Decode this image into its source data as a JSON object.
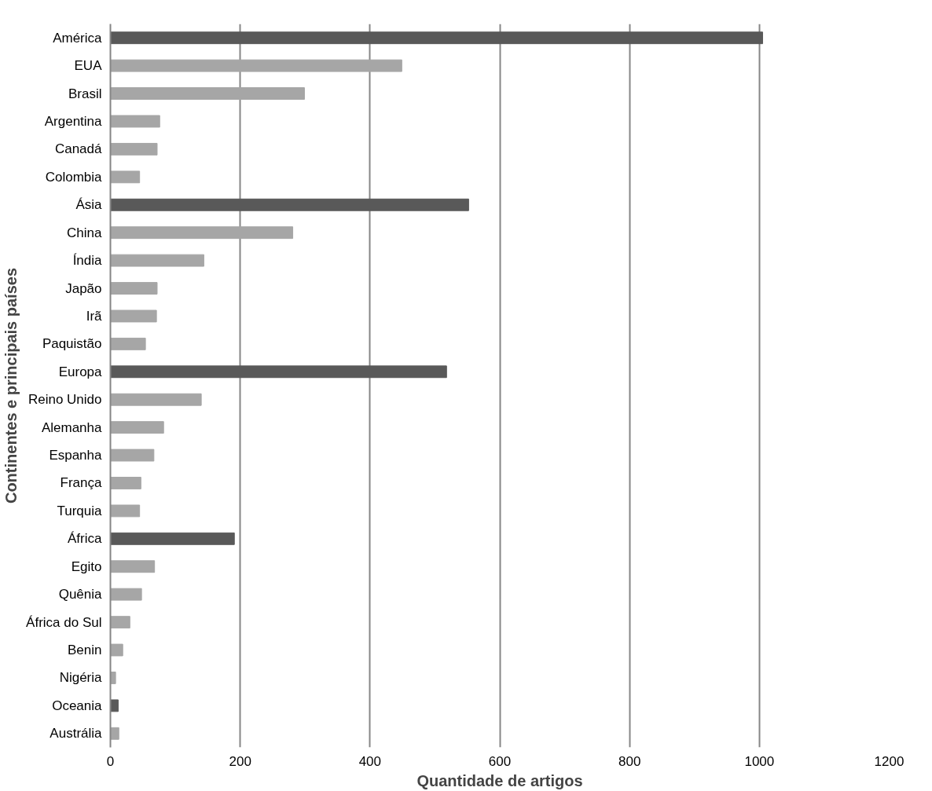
{
  "chart_data": {
    "type": "bar",
    "orientation": "horizontal",
    "xlabel": "Quantidade de artigos",
    "ylabel": "Continentes e principais países",
    "categories": [
      "América",
      "EUA",
      "Brasil",
      "Argentina",
      "Canadá",
      "Colombia",
      "Ásia",
      "China",
      "Índia",
      "Japão",
      "Irã",
      "Paquistão",
      "Europa",
      "Reino Unido",
      "Alemanha",
      "Espanha",
      "França",
      "Turquia",
      "África",
      "Egito",
      "Quênia",
      "África do Sul",
      "Benin",
      "Nigéria",
      "Oceania",
      "Austrália"
    ],
    "values": [
      1005,
      449,
      299,
      76,
      72,
      45,
      552,
      281,
      144,
      72,
      71,
      54,
      518,
      140,
      82,
      67,
      47,
      45,
      191,
      68,
      48,
      30,
      19,
      8,
      12,
      13
    ],
    "colors": [
      "#595959",
      "#a6a6a6",
      "#a6a6a6",
      "#a6a6a6",
      "#a6a6a6",
      "#a6a6a6",
      "#595959",
      "#a6a6a6",
      "#a6a6a6",
      "#a6a6a6",
      "#a6a6a6",
      "#a6a6a6",
      "#595959",
      "#a6a6a6",
      "#a6a6a6",
      "#a6a6a6",
      "#a6a6a6",
      "#a6a6a6",
      "#595959",
      "#a6a6a6",
      "#a6a6a6",
      "#a6a6a6",
      "#a6a6a6",
      "#a6a6a6",
      "#595959",
      "#a6a6a6"
    ],
    "xlim": [
      0,
      1200
    ],
    "xticks": [
      0,
      200,
      400,
      600,
      800,
      1000,
      1200
    ],
    "grid": "x"
  }
}
